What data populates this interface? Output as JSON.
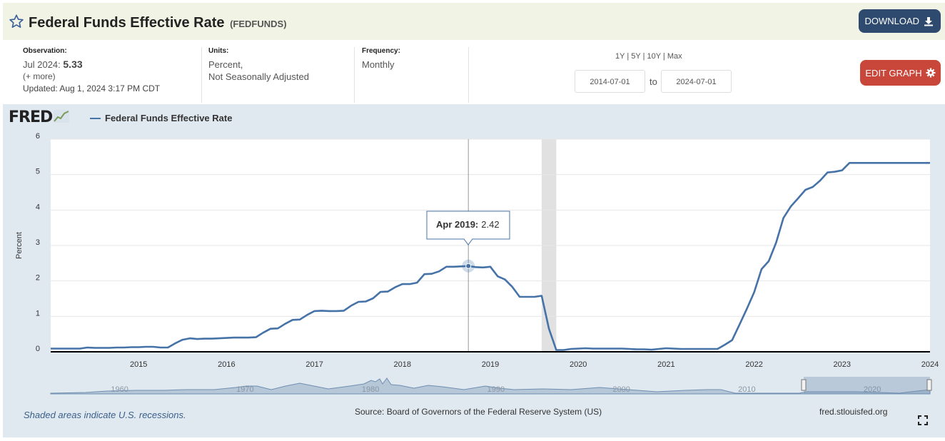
{
  "header": {
    "title": "Federal Funds Effective Rate",
    "series_id": "(FEDFUNDS)",
    "download_label": "DOWNLOAD",
    "star_icon": "star-outline-icon",
    "download_icon": "download-icon"
  },
  "observation": {
    "label": "Observation:",
    "date": "Jul 2024:",
    "value": "5.33",
    "more": "(+ more)",
    "updated": "Updated: Aug 1, 2024 3:17 PM CDT"
  },
  "units": {
    "label": "Units:",
    "line1": "Percent,",
    "line2": "Not Seasonally Adjusted"
  },
  "frequency": {
    "label": "Frequency:",
    "value": "Monthly"
  },
  "range": {
    "links": [
      "1Y",
      "5Y",
      "10Y",
      "Max"
    ],
    "start": "2014-07-01",
    "to": "to",
    "end": "2024-07-01"
  },
  "edit_label": "EDIT GRAPH",
  "logo_text": "FRED",
  "legend_label": "Federal Funds Effective Rate",
  "tooltip": {
    "date": "Apr 2019:",
    "value": "2.42"
  },
  "footer": {
    "note": "Shaded areas indicate U.S. recessions.",
    "source": "Source: Board of Governors of the Federal Reserve System (US)",
    "site": "fred.stlouisfed.org"
  },
  "colors": {
    "line": "#4572a7",
    "panel": "#e1e9f0",
    "recession": "#e1e1e1",
    "download": "#2e4a6e",
    "edit": "#c8473a"
  },
  "chart_data": {
    "type": "line",
    "ylabel": "Percent",
    "ylim": [
      0,
      6
    ],
    "yticks": [
      "0",
      "1",
      "2",
      "3",
      "4",
      "5",
      "6"
    ],
    "xlim": [
      "2014-07-01",
      "2024-07-01"
    ],
    "xticks": [
      "2015",
      "2016",
      "2017",
      "2018",
      "2019",
      "2020",
      "2021",
      "2022",
      "2023",
      "2024"
    ],
    "recessions": [
      [
        "2020-02-01",
        "2020-04-01"
      ]
    ],
    "highlight": {
      "x": "2019-04-01",
      "y": 2.42
    },
    "navigator_ticks": [
      "1960",
      "1970",
      "1980",
      "1990",
      "2000",
      "2010",
      "2020"
    ],
    "series": [
      {
        "name": "Federal Funds Effective Rate",
        "x": [
          "2014-07",
          "2014-08",
          "2014-09",
          "2014-10",
          "2014-11",
          "2014-12",
          "2015-01",
          "2015-02",
          "2015-03",
          "2015-04",
          "2015-05",
          "2015-06",
          "2015-07",
          "2015-08",
          "2015-09",
          "2015-10",
          "2015-11",
          "2015-12",
          "2016-01",
          "2016-02",
          "2016-03",
          "2016-04",
          "2016-05",
          "2016-06",
          "2016-07",
          "2016-08",
          "2016-09",
          "2016-10",
          "2016-11",
          "2016-12",
          "2017-01",
          "2017-02",
          "2017-03",
          "2017-04",
          "2017-05",
          "2017-06",
          "2017-07",
          "2017-08",
          "2017-09",
          "2017-10",
          "2017-11",
          "2017-12",
          "2018-01",
          "2018-02",
          "2018-03",
          "2018-04",
          "2018-05",
          "2018-06",
          "2018-07",
          "2018-08",
          "2018-09",
          "2018-10",
          "2018-11",
          "2018-12",
          "2019-01",
          "2019-02",
          "2019-03",
          "2019-04",
          "2019-05",
          "2019-06",
          "2019-07",
          "2019-08",
          "2019-09",
          "2019-10",
          "2019-11",
          "2019-12",
          "2020-01",
          "2020-02",
          "2020-03",
          "2020-04",
          "2020-05",
          "2020-06",
          "2020-07",
          "2020-08",
          "2020-09",
          "2020-10",
          "2020-11",
          "2020-12",
          "2021-01",
          "2021-02",
          "2021-03",
          "2021-04",
          "2021-05",
          "2021-06",
          "2021-07",
          "2021-08",
          "2021-09",
          "2021-10",
          "2021-11",
          "2021-12",
          "2022-01",
          "2022-02",
          "2022-03",
          "2022-04",
          "2022-05",
          "2022-06",
          "2022-07",
          "2022-08",
          "2022-09",
          "2022-10",
          "2022-11",
          "2022-12",
          "2023-01",
          "2023-02",
          "2023-03",
          "2023-04",
          "2023-05",
          "2023-06",
          "2023-07",
          "2023-08",
          "2023-09",
          "2023-10",
          "2023-11",
          "2023-12",
          "2024-01",
          "2024-02",
          "2024-03",
          "2024-04",
          "2024-05",
          "2024-06",
          "2024-07"
        ],
        "values": [
          0.09,
          0.09,
          0.09,
          0.09,
          0.09,
          0.12,
          0.11,
          0.11,
          0.11,
          0.12,
          0.12,
          0.13,
          0.13,
          0.14,
          0.14,
          0.12,
          0.12,
          0.24,
          0.34,
          0.38,
          0.36,
          0.37,
          0.37,
          0.38,
          0.39,
          0.4,
          0.4,
          0.4,
          0.41,
          0.54,
          0.65,
          0.66,
          0.79,
          0.9,
          0.91,
          1.04,
          1.15,
          1.16,
          1.15,
          1.15,
          1.16,
          1.3,
          1.41,
          1.42,
          1.51,
          1.69,
          1.7,
          1.82,
          1.91,
          1.91,
          1.95,
          2.19,
          2.2,
          2.27,
          2.4,
          2.4,
          2.41,
          2.42,
          2.39,
          2.38,
          2.4,
          2.13,
          2.04,
          1.83,
          1.55,
          1.55,
          1.55,
          1.58,
          0.65,
          0.05,
          0.05,
          0.08,
          0.09,
          0.1,
          0.09,
          0.09,
          0.09,
          0.09,
          0.09,
          0.08,
          0.07,
          0.07,
          0.06,
          0.08,
          0.1,
          0.09,
          0.08,
          0.08,
          0.08,
          0.08,
          0.08,
          0.08,
          0.2,
          0.33,
          0.77,
          1.21,
          1.68,
          2.33,
          2.56,
          3.08,
          3.78,
          4.1,
          4.33,
          4.57,
          4.65,
          4.83,
          5.06,
          5.08,
          5.12,
          5.33,
          5.33,
          5.33,
          5.33,
          5.33,
          5.33,
          5.33,
          5.33,
          5.33,
          5.33,
          5.33,
          5.33
        ]
      }
    ]
  }
}
